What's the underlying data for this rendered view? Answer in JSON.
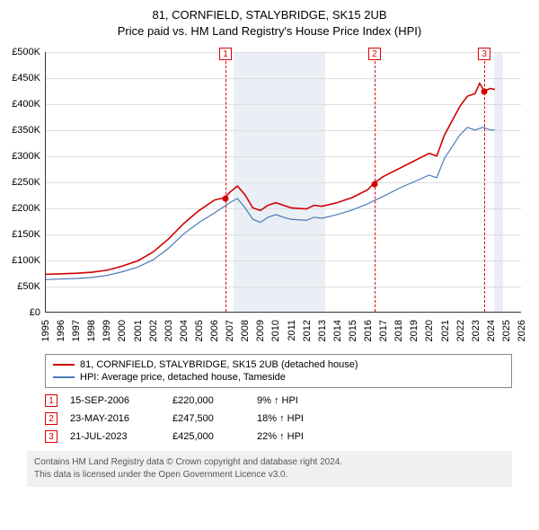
{
  "title": {
    "line1": "81, CORNFIELD, STALYBRIDGE, SK15 2UB",
    "line2": "Price paid vs. HM Land Registry's House Price Index (HPI)"
  },
  "chart": {
    "type": "line",
    "xlim": [
      1995,
      2026
    ],
    "ylim": [
      0,
      500000
    ],
    "ytick_step": 50000,
    "ytick_labels": [
      "£0",
      "£50K",
      "£100K",
      "£150K",
      "£200K",
      "£250K",
      "£300K",
      "£350K",
      "£400K",
      "£450K",
      "£500K"
    ],
    "x_years": [
      1995,
      1996,
      1997,
      1998,
      1999,
      2000,
      2001,
      2002,
      2003,
      2004,
      2005,
      2006,
      2007,
      2008,
      2009,
      2010,
      2011,
      2012,
      2013,
      2014,
      2015,
      2016,
      2017,
      2018,
      2019,
      2020,
      2021,
      2022,
      2023,
      2024,
      2025,
      2026
    ],
    "shaded_band": {
      "start": 2007.2,
      "end": 2013.2,
      "color": "#eaeef5"
    },
    "shaded_band2": {
      "start": 2024.2,
      "end": 2024.8,
      "color": "#eaeef5"
    },
    "grid_color": "#dddddd",
    "background_color": "#ffffff",
    "series": [
      {
        "name": "81, CORNFIELD, STALYBRIDGE, SK15 2UB (detached house)",
        "color": "#d00000",
        "width": 1.6,
        "points": [
          [
            1995,
            72000
          ],
          [
            1996,
            73000
          ],
          [
            1997,
            74000
          ],
          [
            1998,
            76000
          ],
          [
            1999,
            80000
          ],
          [
            2000,
            88000
          ],
          [
            2001,
            98000
          ],
          [
            2002,
            115000
          ],
          [
            2003,
            140000
          ],
          [
            2004,
            170000
          ],
          [
            2005,
            195000
          ],
          [
            2006,
            215000
          ],
          [
            2006.7,
            220000
          ],
          [
            2007,
            230000
          ],
          [
            2007.5,
            242000
          ],
          [
            2008,
            225000
          ],
          [
            2008.5,
            200000
          ],
          [
            2009,
            195000
          ],
          [
            2009.5,
            205000
          ],
          [
            2010,
            210000
          ],
          [
            2010.5,
            205000
          ],
          [
            2011,
            200000
          ],
          [
            2012,
            198000
          ],
          [
            2012.5,
            205000
          ],
          [
            2013,
            203000
          ],
          [
            2014,
            210000
          ],
          [
            2015,
            220000
          ],
          [
            2016,
            235000
          ],
          [
            2016.4,
            247500
          ],
          [
            2017,
            260000
          ],
          [
            2018,
            275000
          ],
          [
            2019,
            290000
          ],
          [
            2020,
            305000
          ],
          [
            2020.5,
            300000
          ],
          [
            2021,
            340000
          ],
          [
            2022,
            395000
          ],
          [
            2022.5,
            415000
          ],
          [
            2023,
            420000
          ],
          [
            2023.3,
            440000
          ],
          [
            2023.6,
            425000
          ],
          [
            2024,
            430000
          ],
          [
            2024.3,
            428000
          ]
        ]
      },
      {
        "name": "HPI: Average price, detached house, Tameside",
        "color": "#4a7ab8",
        "width": 1.2,
        "points": [
          [
            1995,
            62000
          ],
          [
            1996,
            63000
          ],
          [
            1997,
            64000
          ],
          [
            1998,
            66000
          ],
          [
            1999,
            70000
          ],
          [
            2000,
            77000
          ],
          [
            2001,
            86000
          ],
          [
            2002,
            100000
          ],
          [
            2003,
            122000
          ],
          [
            2004,
            150000
          ],
          [
            2005,
            172000
          ],
          [
            2006,
            190000
          ],
          [
            2007,
            210000
          ],
          [
            2007.5,
            218000
          ],
          [
            2008,
            200000
          ],
          [
            2008.5,
            178000
          ],
          [
            2009,
            172000
          ],
          [
            2009.5,
            182000
          ],
          [
            2010,
            187000
          ],
          [
            2010.5,
            182000
          ],
          [
            2011,
            178000
          ],
          [
            2012,
            176000
          ],
          [
            2012.5,
            182000
          ],
          [
            2013,
            180000
          ],
          [
            2014,
            187000
          ],
          [
            2015,
            196000
          ],
          [
            2016,
            208000
          ],
          [
            2017,
            222000
          ],
          [
            2018,
            237000
          ],
          [
            2019,
            250000
          ],
          [
            2020,
            263000
          ],
          [
            2020.5,
            258000
          ],
          [
            2021,
            295000
          ],
          [
            2022,
            340000
          ],
          [
            2022.5,
            355000
          ],
          [
            2023,
            350000
          ],
          [
            2023.5,
            355000
          ],
          [
            2024,
            350000
          ],
          [
            2024.3,
            350000
          ]
        ]
      }
    ],
    "markers": [
      {
        "n": "1",
        "x": 2006.7,
        "y": 220000
      },
      {
        "n": "2",
        "x": 2016.4,
        "y": 247500
      },
      {
        "n": "3",
        "x": 2023.55,
        "y": 425000
      }
    ]
  },
  "legend": {
    "items": [
      {
        "color": "#d00000",
        "label": "81, CORNFIELD, STALYBRIDGE, SK15 2UB (detached house)"
      },
      {
        "color": "#4a7ab8",
        "label": "HPI: Average price, detached house, Tameside"
      }
    ]
  },
  "sales": [
    {
      "n": "1",
      "date": "15-SEP-2006",
      "price": "£220,000",
      "delta": "9% ↑ HPI"
    },
    {
      "n": "2",
      "date": "23-MAY-2016",
      "price": "£247,500",
      "delta": "18% ↑ HPI"
    },
    {
      "n": "3",
      "date": "21-JUL-2023",
      "price": "£425,000",
      "delta": "22% ↑ HPI"
    }
  ],
  "footer": {
    "line1": "Contains HM Land Registry data © Crown copyright and database right 2024.",
    "line2": "This data is licensed under the Open Government Licence v3.0."
  }
}
